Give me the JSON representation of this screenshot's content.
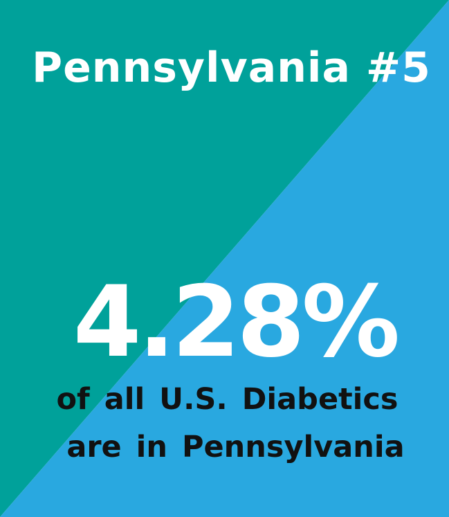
{
  "colors": {
    "teal": "#00A19A",
    "blue": "#29A8E0",
    "title_text": "#FFFFFF",
    "stat_text": "#FFFFFF",
    "caption_text": "#111111"
  },
  "title": "Pennsylvania #5",
  "stat": {
    "value": "4.28%"
  },
  "caption": {
    "line1": "of all U.S. Diabetics",
    "line2": "are in Pennsylvania"
  }
}
